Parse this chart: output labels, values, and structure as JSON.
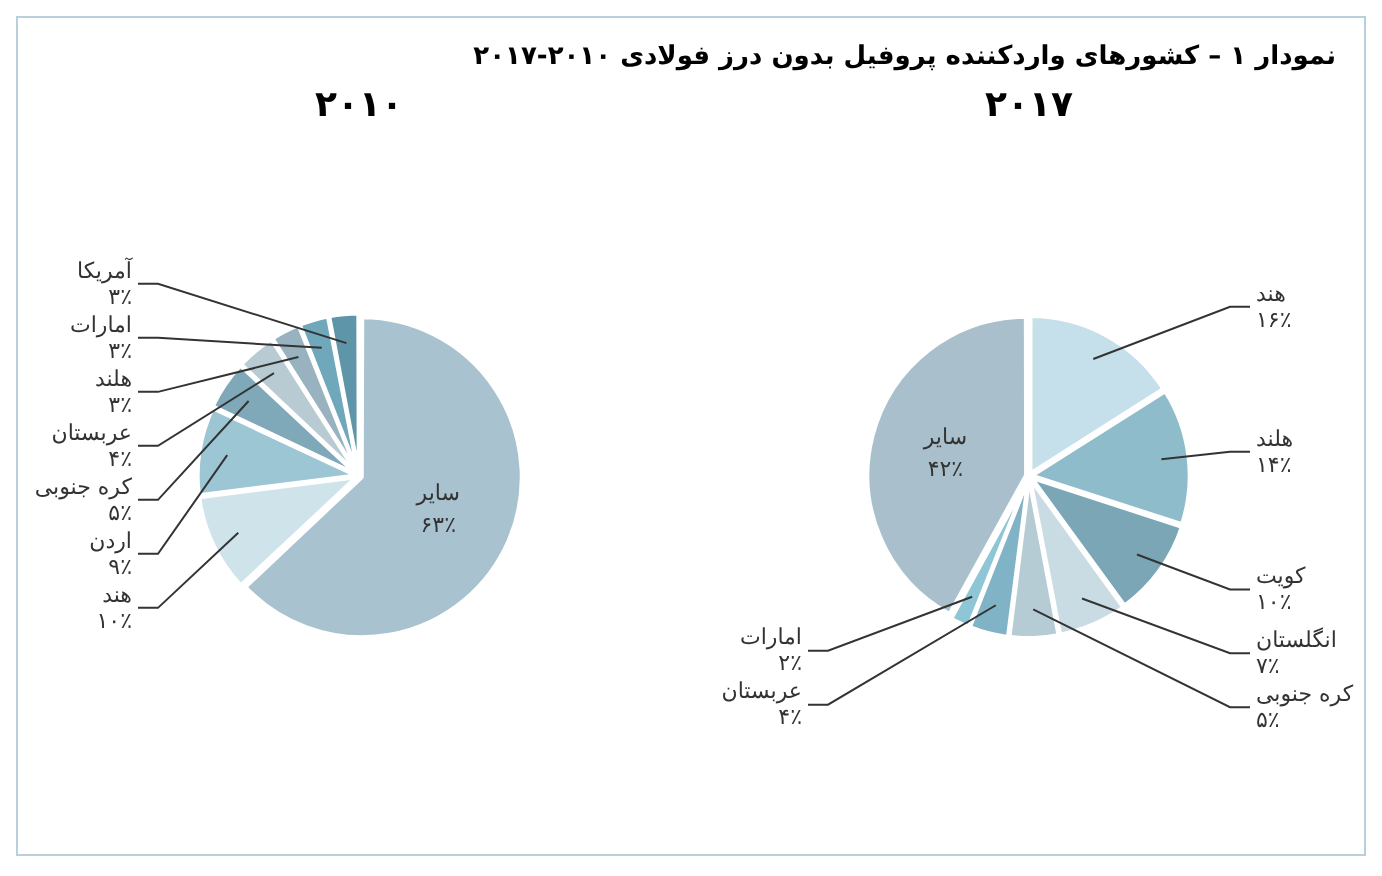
{
  "chart_data": [
    {
      "type": "pie",
      "title": "نمودار ۱ – کشورهای واردکننده پروفیل بدون درز فولادی ۲۰۱۰-۲۰۱۷",
      "subtitle": "۲۰۱۷",
      "categories": [
        "هند",
        "هلند",
        "کویت",
        "انگلستان",
        "کره جنوبی",
        "عربستان",
        "امارات",
        "سایر"
      ],
      "values": [
        16,
        14,
        10,
        7,
        5,
        4,
        2,
        42
      ],
      "value_labels": [
        "۱۶٪",
        "۱۴٪",
        "۱۰٪",
        "۷٪",
        "۵٪",
        "۴٪",
        "۲٪",
        "۴۲٪"
      ],
      "colors": [
        "#c5e0ea",
        "#8fbccb",
        "#7aa6b6",
        "#c9dce3",
        "#b6ccd5",
        "#7fb3c5",
        "#8ec6d6",
        "#a9c0cc"
      ]
    },
    {
      "type": "pie",
      "subtitle": "۲۰۱۰",
      "categories": [
        "سایر",
        "هند",
        "اردن",
        "کره جنوبی",
        "عربستان",
        "هلند",
        "امارات",
        "آمریکا"
      ],
      "values": [
        63,
        10,
        9,
        5,
        4,
        3,
        3,
        3
      ],
      "value_labels": [
        "۶۳٪",
        "۱۰٪",
        "۹٪",
        "۵٪",
        "۴٪",
        "۳٪",
        "۳٪",
        "۳٪"
      ],
      "colors": [
        "#a9c2cf",
        "#cfe3ea",
        "#9cc6d4",
        "#7fa9b9",
        "#b8cbd3",
        "#98b3bf",
        "#6fa7bb",
        "#5f95a8"
      ]
    }
  ]
}
